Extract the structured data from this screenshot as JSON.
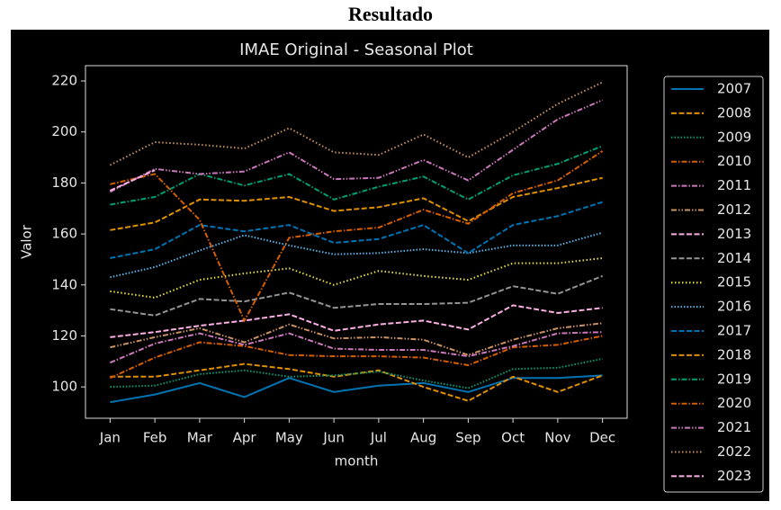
{
  "heading": "Resultado",
  "chart_data": {
    "type": "line",
    "title": "IMAE Original - Seasonal Plot",
    "xlabel": "month",
    "ylabel": "Valor",
    "categories": [
      "Jan",
      "Feb",
      "Mar",
      "Apr",
      "May",
      "Jun",
      "Jul",
      "Aug",
      "Sep",
      "Oct",
      "Nov",
      "Dec"
    ],
    "ylim": [
      87.7,
      226
    ],
    "yticks": [
      100,
      120,
      140,
      160,
      180,
      200,
      220
    ],
    "legend": "outside-right",
    "series": [
      {
        "name": "2007",
        "color": "#0173b2",
        "values": [
          94,
          97,
          101.5,
          96,
          103.5,
          98,
          100.5,
          101.5,
          98,
          103.5,
          103.5,
          104.5
        ]
      },
      {
        "name": "2008",
        "color": "#de8f05",
        "values": [
          104,
          104,
          106.5,
          109,
          107,
          104,
          106.5,
          100,
          94.5,
          104,
          98,
          104.5
        ]
      },
      {
        "name": "2009",
        "color": "#029e73",
        "values": [
          100,
          100.5,
          105,
          106.5,
          104,
          104.5,
          106,
          102.5,
          99.5,
          107,
          107.5,
          111
        ]
      },
      {
        "name": "2010",
        "color": "#d55e00",
        "values": [
          103.5,
          111.5,
          117.5,
          116,
          112.5,
          112,
          112,
          111.5,
          108.5,
          115.5,
          116.5,
          120
        ]
      },
      {
        "name": "2011",
        "color": "#cc78bc",
        "values": [
          109.5,
          117,
          121,
          116.5,
          121,
          115,
          114.5,
          114.5,
          112,
          116,
          121,
          121.5
        ]
      },
      {
        "name": "2012",
        "color": "#ca9161",
        "values": [
          115.5,
          119.5,
          123,
          117.5,
          124.5,
          119,
          119.5,
          118.5,
          112.5,
          118.5,
          123,
          125
        ]
      },
      {
        "name": "2013",
        "color": "#fbafe4",
        "values": [
          119.5,
          121.5,
          124,
          126,
          128.5,
          122,
          124.5,
          126,
          122.5,
          132,
          129,
          131
        ]
      },
      {
        "name": "2014",
        "color": "#949494",
        "values": [
          130.5,
          128,
          134.5,
          133.5,
          137,
          131,
          132.5,
          132.5,
          133,
          139.5,
          136.5,
          143.5
        ]
      },
      {
        "name": "2015",
        "color": "#ece133",
        "values": [
          137.5,
          135,
          142,
          144.5,
          146.5,
          140,
          145.5,
          143.5,
          142,
          148.5,
          148.5,
          150.5
        ]
      },
      {
        "name": "2016",
        "color": "#56b4e9",
        "values": [
          143,
          147,
          153.5,
          159.5,
          155.5,
          152,
          152.5,
          154,
          152.5,
          155.5,
          155.5,
          160.5
        ]
      },
      {
        "name": "2017",
        "color": "#0173b2",
        "values": [
          150.5,
          154,
          163.5,
          161,
          163.5,
          156.5,
          158,
          163.5,
          152.5,
          163.5,
          167,
          172.5
        ]
      },
      {
        "name": "2018",
        "color": "#de8f05",
        "values": [
          161.5,
          164.5,
          173.5,
          173,
          174.5,
          169,
          170.5,
          174,
          165,
          174.5,
          178,
          182
        ]
      },
      {
        "name": "2019",
        "color": "#029e73",
        "values": [
          171.5,
          174.5,
          183.5,
          179,
          183.5,
          173.5,
          178.5,
          182.5,
          173.5,
          183,
          187.5,
          194.5
        ]
      },
      {
        "name": "2020",
        "color": "#d55e00",
        "values": [
          179.5,
          183.5,
          165.5,
          126,
          158.5,
          161,
          162.5,
          169.5,
          164,
          176,
          181,
          192.5
        ]
      },
      {
        "name": "2021",
        "color": "#cc78bc",
        "values": [
          176.5,
          185.5,
          183.5,
          184.5,
          192,
          181.5,
          182,
          189,
          181,
          193,
          205,
          212.5
        ]
      },
      {
        "name": "2022",
        "color": "#ca9161",
        "values": [
          187,
          196,
          195,
          193.5,
          201.5,
          192,
          191,
          199,
          190,
          200,
          211,
          219.5
        ]
      },
      {
        "name": "2023",
        "color": "#fbafe4",
        "values": [
          177,
          185,
          null,
          null,
          null,
          null,
          null,
          null,
          null,
          null,
          null,
          null
        ]
      }
    ]
  }
}
